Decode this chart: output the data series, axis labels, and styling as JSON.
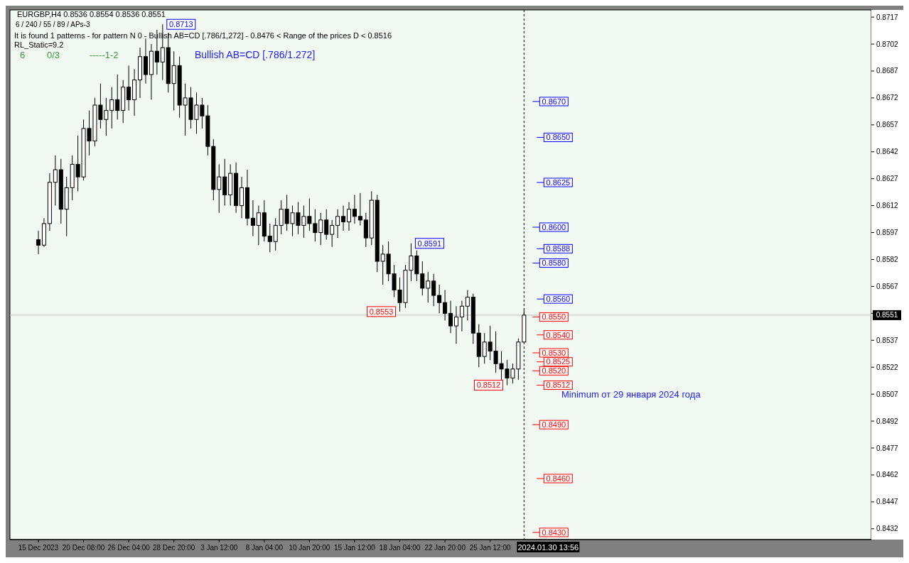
{
  "chart_data": {
    "type": "candlestick",
    "title": "EURGBP,H4  0.8536 0.8554 0.8536 0.8551",
    "categories": [
      "15 Dec 2023",
      null,
      null,
      null,
      null,
      null,
      null,
      null,
      "20 Dec 08:00",
      null,
      null,
      null,
      null,
      null,
      null,
      null,
      "26 Dec 04:00",
      null,
      null,
      null,
      null,
      null,
      null,
      null,
      "28 Dec 20:00",
      null,
      null,
      null,
      null,
      null,
      null,
      null,
      "3 Jan 12:00",
      null,
      null,
      null,
      null,
      null,
      null,
      null,
      "8 Jan 04:00",
      null,
      null,
      null,
      null,
      null,
      null,
      null,
      "10 Jan 20:00",
      null,
      null,
      null,
      null,
      null,
      null,
      null,
      "15 Jan 12:00",
      null,
      null,
      null,
      null,
      null,
      null,
      null,
      "18 Jan 04:00",
      null,
      null,
      null,
      null,
      null,
      null,
      null,
      "22 Jan 20:00",
      null,
      null,
      null,
      null,
      null,
      null,
      null,
      "25 Jan 12:00",
      null,
      null,
      null,
      null,
      null,
      null,
      null,
      null,
      null,
      null,
      null,
      null,
      null,
      null,
      null,
      null,
      null,
      null,
      null,
      null,
      null,
      null,
      null,
      null,
      null,
      null,
      null,
      null,
      null,
      null,
      null,
      null,
      null,
      null,
      null,
      null,
      null,
      null,
      null,
      null,
      null,
      null,
      null,
      null,
      null,
      null,
      null,
      null,
      null,
      null,
      null,
      null,
      null,
      null,
      null,
      null,
      null,
      null,
      null,
      null,
      null,
      null,
      null,
      null,
      null,
      null,
      null
    ],
    "ohlc": [
      [
        0.8593,
        0.8598,
        0.8585,
        0.859
      ],
      [
        0.859,
        0.8605,
        0.8589,
        0.8602
      ],
      [
        0.8602,
        0.863,
        0.8598,
        0.8625
      ],
      [
        0.8625,
        0.864,
        0.8612,
        0.8632
      ],
      [
        0.8632,
        0.8638,
        0.8602,
        0.861
      ],
      [
        0.861,
        0.8628,
        0.8595,
        0.8622
      ],
      [
        0.8622,
        0.864,
        0.8615,
        0.8635
      ],
      [
        0.8635,
        0.8651,
        0.862,
        0.8628
      ],
      [
        0.8628,
        0.866,
        0.8626,
        0.8655
      ],
      [
        0.8655,
        0.8665,
        0.864,
        0.8648
      ],
      [
        0.8648,
        0.8672,
        0.8645,
        0.8668
      ],
      [
        0.8668,
        0.868,
        0.8655,
        0.866
      ],
      [
        0.866,
        0.8672,
        0.8651,
        0.8665
      ],
      [
        0.8665,
        0.8678,
        0.8655,
        0.8671
      ],
      [
        0.8671,
        0.8685,
        0.866,
        0.8665
      ],
      [
        0.8665,
        0.8682,
        0.8658,
        0.8678
      ],
      [
        0.8678,
        0.869,
        0.8665,
        0.8671
      ],
      [
        0.8671,
        0.8688,
        0.8662,
        0.8682
      ],
      [
        0.8682,
        0.87,
        0.8672,
        0.8695
      ],
      [
        0.8695,
        0.8705,
        0.868,
        0.8685
      ],
      [
        0.8685,
        0.8702,
        0.8671,
        0.8698
      ],
      [
        0.8698,
        0.871,
        0.8685,
        0.8692
      ],
      [
        0.8692,
        0.8713,
        0.8682,
        0.87
      ],
      [
        0.87,
        0.8708,
        0.8675,
        0.868
      ],
      [
        0.868,
        0.8698,
        0.8665,
        0.869
      ],
      [
        0.869,
        0.8695,
        0.8661,
        0.8668
      ],
      [
        0.8668,
        0.868,
        0.8651,
        0.8672
      ],
      [
        0.8672,
        0.8678,
        0.8655,
        0.866
      ],
      [
        0.866,
        0.8675,
        0.8652,
        0.8668
      ],
      [
        0.8668,
        0.8672,
        0.8655,
        0.8662
      ],
      [
        0.8662,
        0.8668,
        0.864,
        0.8645
      ],
      [
        0.8645,
        0.8649,
        0.8615,
        0.8621
      ],
      [
        0.8621,
        0.8635,
        0.8608,
        0.8628
      ],
      [
        0.8628,
        0.8638,
        0.8612,
        0.8618
      ],
      [
        0.8618,
        0.8635,
        0.8612,
        0.863
      ],
      [
        0.863,
        0.8636,
        0.8608,
        0.8612
      ],
      [
        0.8612,
        0.8628,
        0.8605,
        0.8622
      ],
      [
        0.8622,
        0.8632,
        0.8601,
        0.8605
      ],
      [
        0.8605,
        0.8615,
        0.8595,
        0.8601
      ],
      [
        0.8601,
        0.8612,
        0.859,
        0.8608
      ],
      [
        0.8608,
        0.8615,
        0.8592,
        0.8595
      ],
      [
        0.8595,
        0.8602,
        0.8586,
        0.8592
      ],
      [
        0.8592,
        0.8605,
        0.8587,
        0.8601
      ],
      [
        0.8601,
        0.8615,
        0.8596,
        0.861
      ],
      [
        0.861,
        0.8618,
        0.8598,
        0.8602
      ],
      [
        0.8602,
        0.8612,
        0.8595,
        0.8608
      ],
      [
        0.8608,
        0.8614,
        0.8596,
        0.8601
      ],
      [
        0.8601,
        0.8612,
        0.8594,
        0.8606
      ],
      [
        0.8606,
        0.8616,
        0.8598,
        0.8602
      ],
      [
        0.8602,
        0.861,
        0.8592,
        0.8597
      ],
      [
        0.8597,
        0.8608,
        0.859,
        0.8604
      ],
      [
        0.8604,
        0.861,
        0.8593,
        0.8596
      ],
      [
        0.8596,
        0.8604,
        0.8589,
        0.8601
      ],
      [
        0.8601,
        0.861,
        0.8594,
        0.8606
      ],
      [
        0.8606,
        0.8612,
        0.8598,
        0.8603
      ],
      [
        0.8603,
        0.8614,
        0.8598,
        0.861
      ],
      [
        0.861,
        0.8618,
        0.8602,
        0.8606
      ],
      [
        0.8606,
        0.8619,
        0.8601,
        0.8604
      ],
      [
        0.8604,
        0.8608,
        0.8589,
        0.8594
      ],
      [
        0.8594,
        0.862,
        0.859,
        0.8615
      ],
      [
        0.8615,
        0.8618,
        0.8575,
        0.8581
      ],
      [
        0.8581,
        0.859,
        0.8568,
        0.8585
      ],
      [
        0.8585,
        0.8592,
        0.857,
        0.8574
      ],
      [
        0.8574,
        0.8579,
        0.8561,
        0.8565
      ],
      [
        0.8565,
        0.8572,
        0.8553,
        0.8558
      ],
      [
        0.8558,
        0.8579,
        0.8555,
        0.8576
      ],
      [
        0.8576,
        0.8591,
        0.857,
        0.8584
      ],
      [
        0.8584,
        0.8587,
        0.857,
        0.8574
      ],
      [
        0.8574,
        0.8581,
        0.8562,
        0.8566
      ],
      [
        0.8566,
        0.8575,
        0.8558,
        0.857
      ],
      [
        0.857,
        0.8574,
        0.8556,
        0.8562
      ],
      [
        0.8562,
        0.8568,
        0.8552,
        0.8558
      ],
      [
        0.8558,
        0.8565,
        0.8548,
        0.8552
      ],
      [
        0.8552,
        0.8559,
        0.8541,
        0.8545
      ],
      [
        0.8545,
        0.8556,
        0.8535,
        0.855
      ],
      [
        0.855,
        0.8559,
        0.8542,
        0.8556
      ],
      [
        0.8556,
        0.8565,
        0.8548,
        0.8561
      ],
      [
        0.8561,
        0.8563,
        0.8535,
        0.8541
      ],
      [
        0.8541,
        0.8546,
        0.8522,
        0.8528
      ],
      [
        0.8528,
        0.8541,
        0.8524,
        0.8536
      ],
      [
        0.8536,
        0.8545,
        0.8526,
        0.8531
      ],
      [
        0.8531,
        0.8542,
        0.8519,
        0.8524
      ],
      [
        0.8524,
        0.8531,
        0.8514,
        0.8521
      ],
      [
        0.8521,
        0.8526,
        0.8512,
        0.8516
      ],
      [
        0.8516,
        0.8524,
        0.8513,
        0.8521
      ],
      [
        0.8521,
        0.8538,
        0.8515,
        0.8536
      ],
      [
        0.8536,
        0.8554,
        0.8536,
        0.8551
      ],
      null,
      null,
      null,
      null,
      null,
      null,
      null,
      null,
      null,
      null,
      null,
      null,
      null,
      null,
      null,
      null,
      null,
      null,
      null,
      null,
      null,
      null,
      null,
      null,
      null,
      null,
      null,
      null,
      null,
      null,
      null,
      null,
      null,
      null,
      null,
      null,
      null,
      null,
      null,
      null,
      null,
      null,
      null,
      null,
      null,
      null,
      null,
      null,
      null,
      null,
      null,
      null,
      null,
      null,
      null,
      null,
      null,
      null,
      null,
      null,
      null
    ],
    "ylim": [
      0.8426,
      0.8721
    ],
    "yticks": [
      0.8432,
      0.8447,
      0.8462,
      0.8477,
      0.8492,
      0.8507,
      0.8522,
      0.8537,
      {
        "value": 0.8552,
        "label": null
      },
      0.8567,
      0.8582,
      0.8597,
      0.8612,
      0.8627,
      0.8642,
      0.8657,
      0.8672,
      0.8687,
      0.8702,
      0.8717
    ],
    "grid": false,
    "legend": false,
    "ref_lines": [
      {
        "axis": "y",
        "value": 0.8551,
        "label": "0.8551",
        "color": "#c0c0c0"
      }
    ],
    "annotations": [
      "6 / 240 / 55 / 89 / APs-3",
      "It is found 1 patterns  -  for pattern N 0 - Bullish AB=CD [.786/1,272] - 0.8476 < Range of the prices D < 0.8516",
      "RL_Static=9.2",
      "6",
      "0/3",
      "-----1-2",
      "Bullish AB=CD [.786/1.272]",
      "Minimum от 29 января 2024 года",
      "2024.01.30 13:56",
      "0.8625",
      {
        "text": "0.8713",
        "y": 0.8713
      },
      {
        "text": "0.8591",
        "y": 0.8591
      },
      {
        "text": "0.8553",
        "y": 0.8553
      },
      {
        "text": "0.8512",
        "y": 0.8512
      },
      {
        "text": "0.8670",
        "y": 0.867
      },
      {
        "text": "0.8650",
        "y": 0.865
      },
      {
        "text": "0.8600",
        "y": 0.86
      },
      {
        "text": "0.8588",
        "y": 0.8588
      },
      {
        "text": "0.8580",
        "y": 0.858
      },
      {
        "text": "0.8560",
        "y": 0.856
      },
      {
        "text": "0.8550",
        "y": 0.855
      },
      {
        "text": "0.8540",
        "y": 0.854
      },
      {
        "text": "0.8530",
        "y": 0.853
      },
      {
        "text": "0.8525",
        "y": 0.8525
      },
      {
        "text": "0.8520",
        "y": 0.852
      },
      {
        "text": "0.8512",
        "y": 0.8512
      },
      {
        "text": "0.8490",
        "y": 0.849
      },
      {
        "text": "0.8460",
        "y": 0.846
      },
      {
        "text": "0.8430",
        "y": 0.843
      }
    ]
  }
}
